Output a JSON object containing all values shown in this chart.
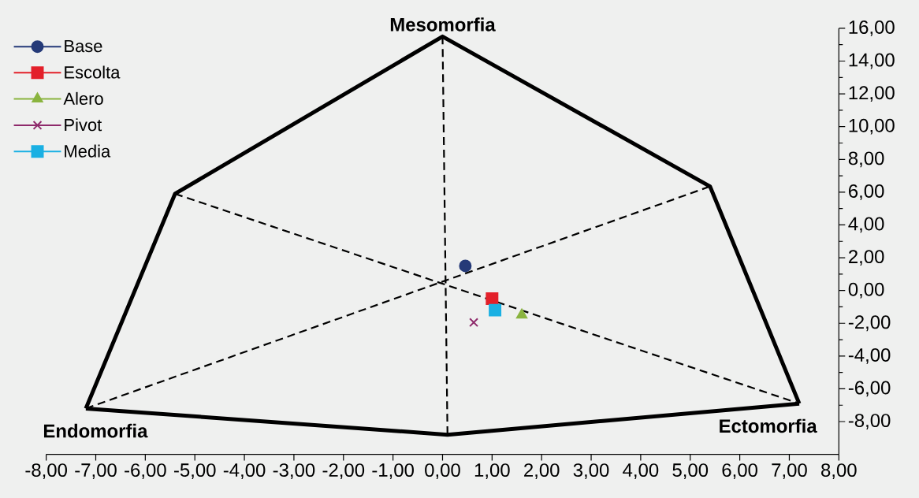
{
  "chart_data": {
    "type": "scatter",
    "annotations": [
      {
        "text": "Mesomorfia",
        "x": 0,
        "y": 15.5
      },
      {
        "text": "Endomorfia",
        "x": -7.2,
        "y": -7.2
      },
      {
        "text": "Ectomorfia",
        "x": 7.2,
        "y": -6.9
      }
    ],
    "xlim": [
      -8,
      8
    ],
    "xticks": [
      {
        "value": -8,
        "label": "-8,00"
      },
      {
        "value": -7,
        "label": "-7,00"
      },
      {
        "value": -6,
        "label": "-6,00"
      },
      {
        "value": -5,
        "label": "-5,00"
      },
      {
        "value": -4,
        "label": "-4,00"
      },
      {
        "value": -3,
        "label": "-3,00"
      },
      {
        "value": -2,
        "label": "-2,00"
      },
      {
        "value": -1,
        "label": "-1,00"
      },
      {
        "value": 0,
        "label": "0,00"
      },
      {
        "value": 1,
        "label": "1,00"
      },
      {
        "value": 2,
        "label": "2,00"
      },
      {
        "value": 3,
        "label": "3,00"
      },
      {
        "value": 4,
        "label": "4,00"
      },
      {
        "value": 5,
        "label": "5,00"
      },
      {
        "value": 6,
        "label": "6,00"
      },
      {
        "value": 7,
        "label": "7,00"
      },
      {
        "value": 8,
        "label": "8,00"
      }
    ],
    "ylim": [
      -10,
      16
    ],
    "yticks": [
      {
        "value": -8,
        "label": "-8,00"
      },
      {
        "value": -6,
        "label": "-6,00"
      },
      {
        "value": -4,
        "label": "-4,00"
      },
      {
        "value": -2,
        "label": "-2,00"
      },
      {
        "value": 0,
        "label": "0,00"
      },
      {
        "value": 2,
        "label": "2,00"
      },
      {
        "value": 4,
        "label": "4,00"
      },
      {
        "value": 6,
        "label": "6,00"
      },
      {
        "value": 8,
        "label": "8,00"
      },
      {
        "value": 10,
        "label": "10,00"
      },
      {
        "value": 12,
        "label": "12,00"
      },
      {
        "value": 14,
        "label": "14,00"
      },
      {
        "value": 16,
        "label": "16,00"
      }
    ],
    "legend": "top left",
    "series": [
      {
        "type": "line",
        "color": "#000000",
        "line_style": "dashed",
        "x": [
          -5.4,
          7.2
        ],
        "values": [
          5.9,
          -6.9
        ]
      },
      {
        "type": "line",
        "color": "#000000",
        "line_style": "dashed",
        "x": [
          -7.2,
          5.4
        ],
        "values": [
          -7.2,
          6.35
        ]
      },
      {
        "type": "line",
        "color": "#000000",
        "line_style": "dashed",
        "x": [
          0,
          0.1
        ],
        "values": [
          15.5,
          -8.8
        ]
      },
      {
        "type": "line",
        "color": "#000000",
        "line_style": "solid",
        "x": [
          -7.2,
          -5.4,
          0,
          5.4,
          7.2
        ],
        "values": [
          -7.2,
          5.9,
          15.5,
          6.35,
          -6.9
        ]
      },
      {
        "type": "line",
        "color": "#000000",
        "line_style": "solid",
        "x": [
          7.2,
          0.1,
          -7.2
        ],
        "values": [
          -6.9,
          -8.8,
          -7.2
        ]
      },
      {
        "name": "Base",
        "color": "#253a78",
        "marker": "circle",
        "x": [
          0.46
        ],
        "values": [
          1.5
        ]
      },
      {
        "name": "Escolta",
        "color": "#e3202a",
        "marker": "square",
        "x": [
          1.0
        ],
        "values": [
          -0.5
        ]
      },
      {
        "name": "Alero",
        "color": "#8ab43f",
        "marker": "triangle",
        "x": [
          1.6
        ],
        "values": [
          -1.5
        ]
      },
      {
        "name": "Pivot",
        "color": "#8e2a6b",
        "marker": "cross",
        "x": [
          0.63
        ],
        "values": [
          -1.95
        ]
      },
      {
        "name": "Media",
        "color": "#1ab0e3",
        "marker": "square",
        "x": [
          1.06
        ],
        "values": [
          -1.2
        ]
      }
    ]
  }
}
